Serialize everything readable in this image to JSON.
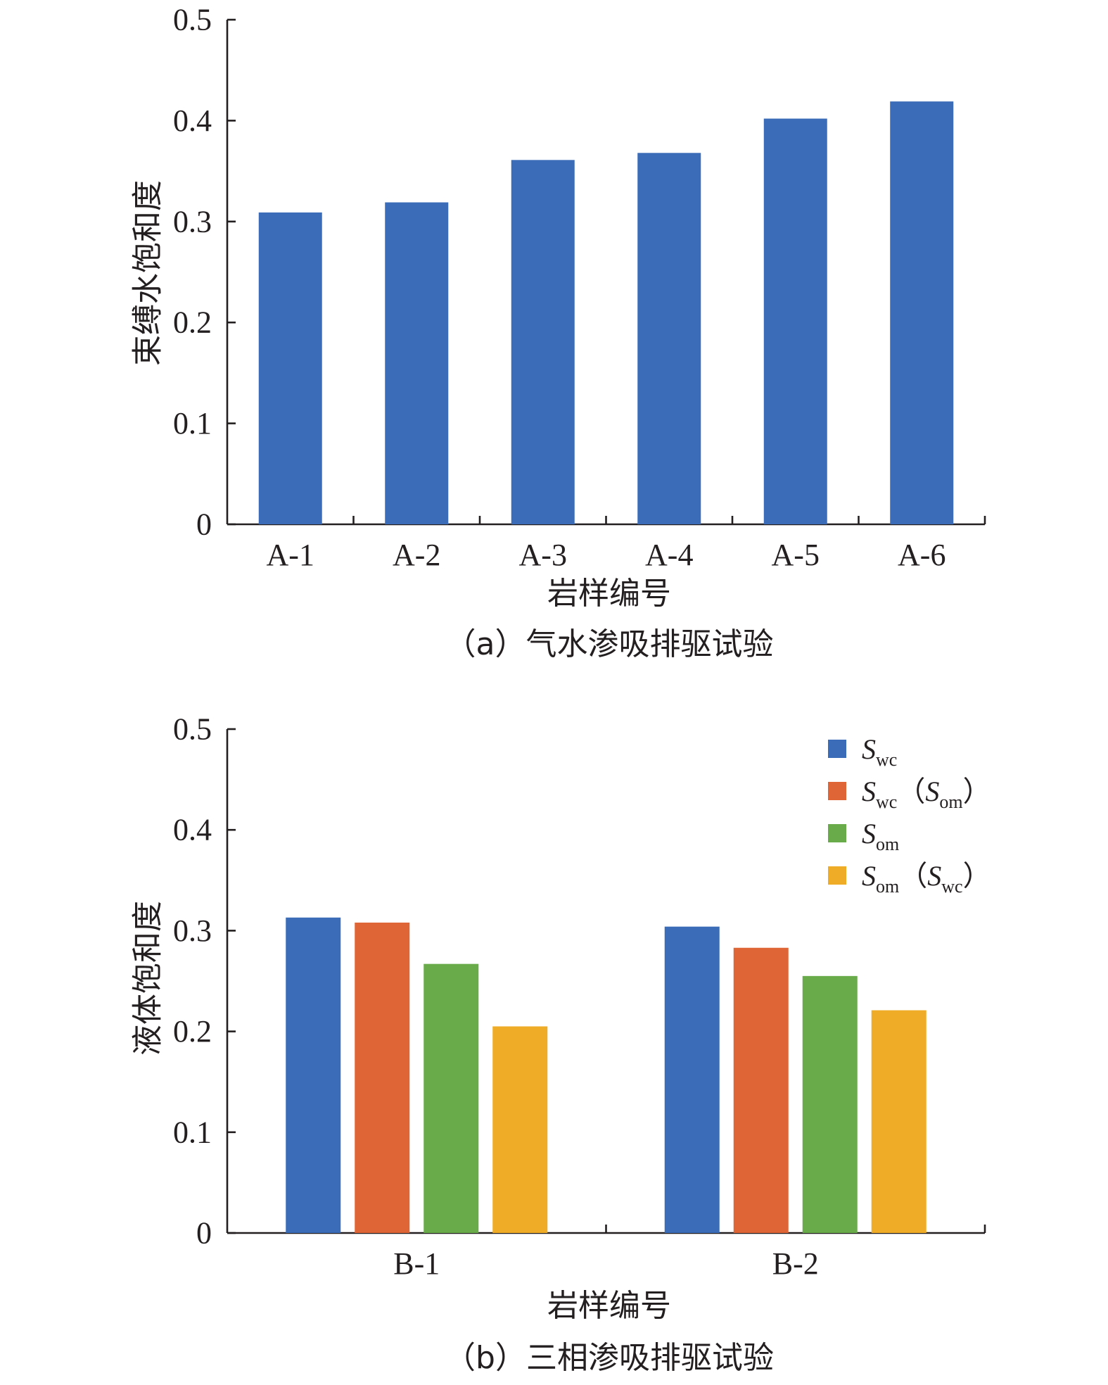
{
  "chart_data": [
    {
      "type": "bar",
      "caption": "（a）气水渗吸排驱试验",
      "xlabel": "岩样编号",
      "ylabel": "束缚水饱和度",
      "ylim": [
        0,
        0.5
      ],
      "yticks": [
        "0",
        "0.1",
        "0.2",
        "0.3",
        "0.4",
        "0.5"
      ],
      "categories": [
        "A-1",
        "A-2",
        "A-3",
        "A-4",
        "A-5",
        "A-6"
      ],
      "series": [
        {
          "values": [
            0.309,
            0.319,
            0.361,
            0.368,
            0.402,
            0.419
          ]
        }
      ],
      "grid": false,
      "colors": [
        "#3b6cb8"
      ]
    },
    {
      "type": "bar",
      "caption": "（b）三相渗吸排驱试验",
      "xlabel": "岩样编号",
      "ylabel": "液体饱和度",
      "ylim": [
        0,
        0.5
      ],
      "yticks": [
        "0",
        "0.1",
        "0.2",
        "0.3",
        "0.4",
        "0.5"
      ],
      "categories": [
        "B-1",
        "B-2"
      ],
      "series": [
        {
          "name": "Swc",
          "values": [
            0.313,
            0.304
          ]
        },
        {
          "name": "Swc（Som）",
          "values": [
            0.308,
            0.283
          ]
        },
        {
          "name": "Som",
          "values": [
            0.267,
            0.255
          ]
        },
        {
          "name": "Som（Swc）",
          "values": [
            0.205,
            0.221
          ]
        }
      ],
      "legend": {
        "placement": "top-right",
        "items": [
          {
            "main": "S",
            "sub": "wc",
            "paren_main": "",
            "paren_sub": ""
          },
          {
            "main": "S",
            "sub": "wc",
            "paren_main": "S",
            "paren_sub": "om"
          },
          {
            "main": "S",
            "sub": "om",
            "paren_main": "",
            "paren_sub": ""
          },
          {
            "main": "S",
            "sub": "om",
            "paren_main": "S",
            "paren_sub": "wc"
          }
        ]
      },
      "grid": false,
      "colors": [
        "#3b6cb8",
        "#e06536",
        "#69ab4a",
        "#efac26"
      ]
    }
  ]
}
